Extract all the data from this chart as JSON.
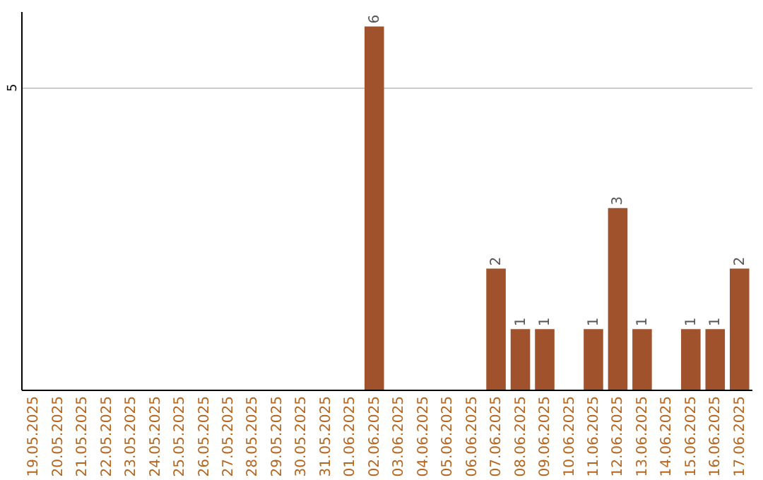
{
  "chart_data": {
    "type": "bar",
    "categories": [
      "19.05.2025",
      "20.05.2025",
      "21.05.2025",
      "22.05.2025",
      "23.05.2025",
      "24.05.2025",
      "25.05.2025",
      "26.05.2025",
      "27.05.2025",
      "28.05.2025",
      "29.05.2025",
      "30.05.2025",
      "31.05.2025",
      "01.06.2025",
      "02.06.2025",
      "03.06.2025",
      "04.06.2025",
      "05.06.2025",
      "06.06.2025",
      "07.06.2025",
      "08.06.2025",
      "09.06.2025",
      "10.06.2025",
      "11.06.2025",
      "12.06.2025",
      "13.06.2025",
      "14.06.2025",
      "15.06.2025",
      "16.06.2025",
      "17.06.2025"
    ],
    "values": [
      null,
      null,
      null,
      null,
      null,
      null,
      null,
      null,
      null,
      null,
      null,
      null,
      null,
      null,
      6,
      null,
      null,
      null,
      null,
      2,
      1,
      1,
      null,
      1,
      3,
      1,
      null,
      1,
      1,
      2
    ],
    "color": "#a0522d",
    "ylim": [
      0,
      6.25
    ],
    "yticks": [
      5
    ],
    "grid": "y",
    "data_labels": true
  }
}
